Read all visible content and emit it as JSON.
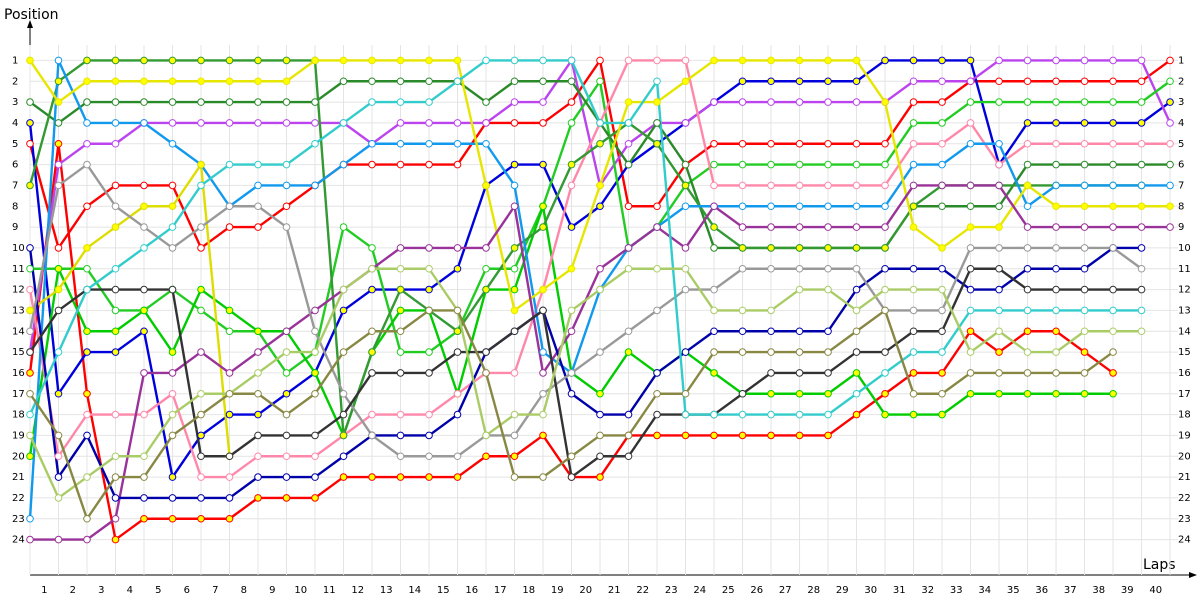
{
  "chart_data": {
    "type": "line",
    "y_label": "Position",
    "x_label": "Laps",
    "x": [
      0,
      1,
      2,
      3,
      4,
      5,
      6,
      7,
      8,
      9,
      10,
      11,
      12,
      13,
      14,
      15,
      16,
      17,
      18,
      19,
      20,
      21,
      22,
      23,
      24,
      25,
      26,
      27,
      28,
      29,
      30,
      31,
      32,
      33,
      34,
      35,
      36,
      37,
      38,
      39,
      40
    ],
    "xlim": [
      0,
      40.7
    ],
    "xticks": [
      {
        "value": 0.5,
        "label": "1"
      },
      {
        "value": 1.5,
        "label": "2"
      },
      {
        "value": 2.5,
        "label": "3"
      },
      {
        "value": 3.5,
        "label": "4"
      },
      {
        "value": 4.5,
        "label": "5"
      },
      {
        "value": 5.5,
        "label": "6"
      },
      {
        "value": 6.5,
        "label": "7"
      },
      {
        "value": 7.5,
        "label": "8"
      },
      {
        "value": 8.5,
        "label": "9"
      },
      {
        "value": 9.5,
        "label": "10"
      },
      {
        "value": 10.5,
        "label": "11"
      },
      {
        "value": 11.5,
        "label": "12"
      },
      {
        "value": 12.5,
        "label": "13"
      },
      {
        "value": 13.5,
        "label": "14"
      },
      {
        "value": 14.5,
        "label": "15"
      },
      {
        "value": 15.5,
        "label": "16"
      },
      {
        "value": 16.5,
        "label": "17"
      },
      {
        "value": 17.5,
        "label": "18"
      },
      {
        "value": 18.5,
        "label": "19"
      },
      {
        "value": 19.5,
        "label": "20"
      },
      {
        "value": 20.5,
        "label": "21"
      },
      {
        "value": 21.5,
        "label": "22"
      },
      {
        "value": 22.5,
        "label": "23"
      },
      {
        "value": 23.5,
        "label": "24"
      },
      {
        "value": 24.5,
        "label": "25"
      },
      {
        "value": 25.5,
        "label": "26"
      },
      {
        "value": 26.5,
        "label": "27"
      },
      {
        "value": 27.5,
        "label": "28"
      },
      {
        "value": 28.5,
        "label": "29"
      },
      {
        "value": 29.5,
        "label": "30"
      },
      {
        "value": 30.5,
        "label": "31"
      },
      {
        "value": 31.5,
        "label": "32"
      },
      {
        "value": 32.5,
        "label": "33"
      },
      {
        "value": 33.5,
        "label": "34"
      },
      {
        "value": 34.5,
        "label": "35"
      },
      {
        "value": 35.5,
        "label": "36"
      },
      {
        "value": 36.5,
        "label": "37"
      },
      {
        "value": 37.5,
        "label": "38"
      },
      {
        "value": 38.5,
        "label": "39"
      },
      {
        "value": 39.5,
        "label": "40"
      }
    ],
    "ylim": [
      25.7,
      -0.7
    ],
    "yticks": [
      1,
      2,
      3,
      4,
      5,
      6,
      7,
      8,
      9,
      10,
      11,
      12,
      13,
      14,
      15,
      16,
      17,
      18,
      19,
      20,
      21,
      22,
      23,
      24
    ],
    "grid": true,
    "series": [
      {
        "color": "#ff0000",
        "marker": "#ffff00",
        "values": [
          16,
          5,
          17,
          24,
          23,
          23,
          23,
          23,
          22,
          22,
          22,
          21,
          21,
          21,
          21,
          21,
          20,
          20,
          19,
          21,
          21,
          19,
          19,
          19,
          19,
          19,
          19,
          19,
          19,
          18,
          17,
          16,
          16,
          14,
          15,
          14,
          14,
          15,
          16,
          null,
          null
        ]
      },
      {
        "color": "#ff0000",
        "marker": "#ffffff",
        "values": [
          5,
          10,
          8,
          7,
          7,
          7,
          10,
          9,
          9,
          8,
          7,
          6,
          6,
          6,
          6,
          6,
          4,
          4,
          4,
          3,
          1,
          8,
          8,
          6,
          5,
          5,
          5,
          5,
          5,
          5,
          5,
          3,
          3,
          2,
          2,
          2,
          2,
          2,
          2,
          2,
          1
        ]
      },
      {
        "color": "#0000dd",
        "marker": "#ffff00",
        "values": [
          4,
          17,
          15,
          15,
          14,
          21,
          19,
          18,
          18,
          17,
          16,
          13,
          12,
          12,
          12,
          11,
          7,
          6,
          6,
          9,
          8,
          6,
          5,
          4,
          3,
          2,
          2,
          2,
          2,
          2,
          1,
          1,
          1,
          1,
          6,
          4,
          4,
          4,
          4,
          4,
          3
        ]
      },
      {
        "color": "#bb44ee",
        "marker": "#ffffff",
        "values": [
          15,
          6,
          5,
          5,
          4,
          4,
          4,
          4,
          4,
          4,
          4,
          4,
          5,
          4,
          4,
          4,
          4,
          3,
          3,
          1,
          7,
          5,
          4,
          4,
          3,
          3,
          3,
          3,
          3,
          3,
          3,
          2,
          2,
          2,
          1,
          1,
          1,
          1,
          1,
          1,
          4
        ]
      },
      {
        "color": "#22cc22",
        "marker": "#ffffff",
        "values": [
          11,
          11,
          11,
          13,
          13,
          12,
          13,
          14,
          14,
          16,
          15,
          9,
          10,
          15,
          15,
          14,
          11,
          11,
          8,
          4,
          2,
          10,
          9,
          7,
          6,
          6,
          6,
          6,
          6,
          6,
          6,
          4,
          4,
          3,
          3,
          3,
          3,
          3,
          3,
          3,
          2
        ]
      },
      {
        "color": "#00cc00",
        "marker": "#ffff00",
        "values": [
          20,
          11,
          14,
          14,
          13,
          15,
          12,
          13,
          14,
          14,
          16,
          19,
          15,
          13,
          13,
          17,
          12,
          12,
          8,
          16,
          17,
          15,
          16,
          15,
          16,
          17,
          17,
          17,
          17,
          16,
          18,
          18,
          18,
          17,
          17,
          17,
          17,
          17,
          17,
          null,
          null
        ]
      },
      {
        "color": "#ff88aa",
        "marker": "#ffffff",
        "values": [
          12,
          20,
          18,
          18,
          18,
          17,
          21,
          21,
          20,
          20,
          20,
          19,
          18,
          18,
          18,
          17,
          16,
          16,
          12,
          7,
          4,
          1,
          1,
          1,
          7,
          7,
          7,
          7,
          7,
          7,
          7,
          5,
          5,
          4,
          6,
          5,
          5,
          5,
          5,
          5,
          5
        ]
      },
      {
        "color": "#2a8a2a",
        "marker": "#ffffff",
        "values": [
          3,
          4,
          3,
          3,
          3,
          3,
          3,
          3,
          3,
          3,
          3,
          2,
          2,
          2,
          2,
          2,
          3,
          2,
          2,
          2,
          4,
          6,
          4,
          6,
          10,
          10,
          10,
          10,
          10,
          10,
          10,
          8,
          8,
          8,
          8,
          6,
          6,
          6,
          6,
          6,
          6
        ]
      },
      {
        "color": "#339933",
        "marker": "#ffff00",
        "values": [
          7,
          2,
          1,
          1,
          1,
          1,
          1,
          1,
          1,
          1,
          1,
          19,
          15,
          12,
          13,
          14,
          12,
          10,
          9,
          6,
          5,
          4,
          5,
          7,
          9,
          10,
          10,
          10,
          10,
          10,
          10,
          8,
          7,
          7,
          7,
          7,
          7,
          7,
          7,
          7,
          null
        ]
      },
      {
        "color": "#1199ee",
        "marker": "#ffffff",
        "values": [
          23,
          1,
          4,
          4,
          4,
          5,
          6,
          8,
          7,
          7,
          7,
          6,
          5,
          5,
          5,
          5,
          5,
          7,
          15,
          16,
          12,
          10,
          9,
          8,
          8,
          8,
          8,
          8,
          8,
          8,
          8,
          6,
          6,
          5,
          5,
          8,
          7,
          7,
          7,
          7,
          7
        ]
      },
      {
        "color": "#e6e600",
        "marker": "#ffff00",
        "values": [
          1,
          3,
          2,
          2,
          2,
          2,
          2,
          2,
          2,
          2,
          1,
          1,
          1,
          1,
          1,
          1,
          7,
          13,
          12,
          11,
          7,
          3,
          3,
          2,
          1,
          1,
          1,
          1,
          1,
          1,
          3,
          9,
          10,
          9,
          9,
          7,
          8,
          8,
          8,
          8,
          8
        ]
      },
      {
        "color": "#dddd00",
        "marker": "#ffff00",
        "values": [
          13,
          12,
          10,
          9,
          8,
          8,
          6,
          20,
          null,
          null,
          null,
          null,
          null,
          null,
          null,
          null,
          null,
          null,
          null,
          null,
          null,
          null,
          null,
          null,
          null,
          null,
          null,
          null,
          null,
          null,
          null,
          null,
          null,
          null,
          null,
          null,
          null,
          null,
          null,
          null,
          null
        ]
      },
      {
        "color": "#993399",
        "marker": "#ffffff",
        "values": [
          24,
          24,
          24,
          23,
          16,
          16,
          15,
          16,
          15,
          14,
          13,
          12,
          11,
          10,
          10,
          10,
          10,
          8,
          16,
          14,
          11,
          10,
          9,
          10,
          8,
          9,
          9,
          9,
          9,
          9,
          9,
          7,
          7,
          7,
          7,
          9,
          9,
          9,
          9,
          9,
          9
        ]
      },
      {
        "color": "#0000aa",
        "marker": "#ffffff",
        "values": [
          10,
          21,
          19,
          22,
          22,
          22,
          22,
          22,
          21,
          21,
          21,
          20,
          19,
          19,
          19,
          18,
          15,
          14,
          13,
          17,
          18,
          18,
          16,
          15,
          14,
          14,
          14,
          14,
          14,
          12,
          11,
          11,
          11,
          12,
          12,
          11,
          11,
          11,
          10,
          10,
          null
        ]
      },
      {
        "color": "#999999",
        "marker": "#ffffff",
        "values": [
          14,
          7,
          6,
          8,
          9,
          10,
          9,
          8,
          8,
          9,
          14,
          17,
          19,
          20,
          20,
          20,
          19,
          19,
          17,
          16,
          15,
          14,
          13,
          12,
          12,
          11,
          11,
          11,
          11,
          11,
          13,
          13,
          13,
          10,
          10,
          10,
          10,
          10,
          10,
          11,
          null
        ]
      },
      {
        "color": "#333333",
        "marker": "#ffffff",
        "values": [
          15,
          13,
          12,
          12,
          12,
          12,
          20,
          20,
          19,
          19,
          19,
          18,
          16,
          16,
          16,
          15,
          15,
          14,
          13,
          21,
          20,
          20,
          18,
          18,
          18,
          17,
          16,
          16,
          16,
          15,
          15,
          14,
          14,
          11,
          11,
          12,
          12,
          12,
          12,
          12,
          null
        ]
      },
      {
        "color": "#33cccc",
        "marker": "#ffffff",
        "values": [
          18,
          15,
          12,
          11,
          10,
          9,
          7,
          6,
          6,
          6,
          5,
          4,
          3,
          3,
          3,
          2,
          1,
          1,
          1,
          1,
          4,
          4,
          2,
          18,
          18,
          18,
          18,
          18,
          18,
          17,
          16,
          15,
          15,
          13,
          13,
          13,
          13,
          13,
          13,
          13,
          null
        ]
      },
      {
        "color": "#aacc66",
        "marker": "#ffffff",
        "values": [
          19,
          22,
          21,
          20,
          20,
          18,
          17,
          17,
          16,
          15,
          15,
          12,
          11,
          11,
          11,
          13,
          19,
          18,
          18,
          13,
          12,
          11,
          11,
          11,
          13,
          13,
          13,
          12,
          12,
          13,
          12,
          12,
          12,
          15,
          14,
          15,
          15,
          14,
          14,
          14,
          null
        ]
      },
      {
        "color": "#888844",
        "marker": "#ffffff",
        "values": [
          17,
          19,
          23,
          21,
          21,
          19,
          18,
          17,
          17,
          18,
          17,
          15,
          14,
          14,
          13,
          13,
          16,
          21,
          21,
          20,
          19,
          19,
          17,
          17,
          15,
          15,
          15,
          15,
          15,
          14,
          13,
          17,
          17,
          16,
          16,
          16,
          16,
          16,
          15,
          null,
          null
        ]
      }
    ]
  }
}
